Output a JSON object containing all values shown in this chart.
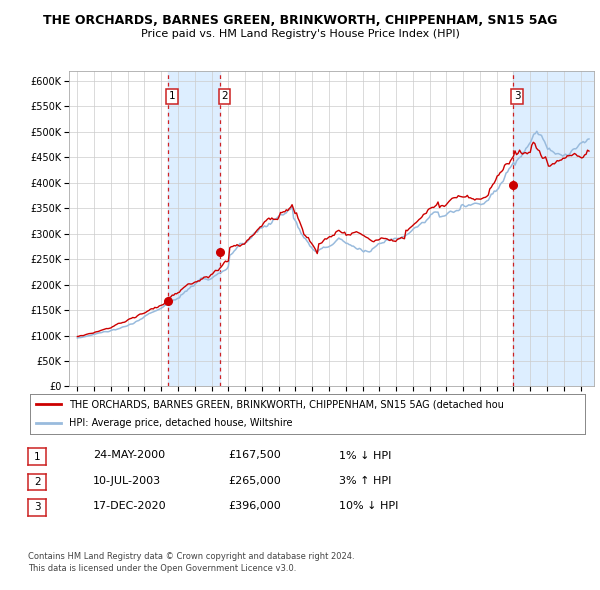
{
  "title": "THE ORCHARDS, BARNES GREEN, BRINKWORTH, CHIPPENHAM, SN15 5AG",
  "subtitle": "Price paid vs. HM Land Registry's House Price Index (HPI)",
  "legend_label_red": "THE ORCHARDS, BARNES GREEN, BRINKWORTH, CHIPPENHAM, SN15 5AG (detached hou",
  "legend_label_blue": "HPI: Average price, detached house, Wiltshire",
  "footer1": "Contains HM Land Registry data © Crown copyright and database right 2024.",
  "footer2": "This data is licensed under the Open Government Licence v3.0.",
  "transactions": [
    {
      "num": 1,
      "date": "24-MAY-2000",
      "price": "£167,500",
      "hpi": "1% ↓ HPI",
      "year": 2000.38
    },
    {
      "num": 2,
      "date": "10-JUL-2003",
      "price": "£265,000",
      "hpi": "3% ↑ HPI",
      "year": 2003.52
    },
    {
      "num": 3,
      "date": "17-DEC-2020",
      "price": "£396,000",
      "hpi": "10% ↓ HPI",
      "year": 2020.96
    }
  ],
  "ylim": [
    0,
    620000
  ],
  "xlim_start": 1994.5,
  "xlim_end": 2025.8,
  "yticks": [
    0,
    50000,
    100000,
    150000,
    200000,
    250000,
    300000,
    350000,
    400000,
    450000,
    500000,
    550000,
    600000
  ],
  "ytick_labels": [
    "£0",
    "£50K",
    "£100K",
    "£150K",
    "£200K",
    "£250K",
    "£300K",
    "£350K",
    "£400K",
    "£450K",
    "£500K",
    "£550K",
    "£600K"
  ],
  "xticks": [
    1995,
    1996,
    1997,
    1998,
    1999,
    2000,
    2001,
    2002,
    2003,
    2004,
    2005,
    2006,
    2007,
    2008,
    2009,
    2010,
    2011,
    2012,
    2013,
    2014,
    2015,
    2016,
    2017,
    2018,
    2019,
    2020,
    2021,
    2022,
    2023,
    2024,
    2025
  ],
  "bg_color": "#ffffff",
  "plot_bg_color": "#ffffff",
  "grid_color": "#cccccc",
  "red_color": "#cc0000",
  "blue_color": "#99bbdd",
  "shade_color": "#ddeeff",
  "dashed_color": "#cc0000",
  "title_fontsize": 9,
  "subtitle_fontsize": 8,
  "tick_fontsize": 7,
  "legend_fontsize": 7,
  "table_fontsize": 8,
  "footer_fontsize": 6
}
